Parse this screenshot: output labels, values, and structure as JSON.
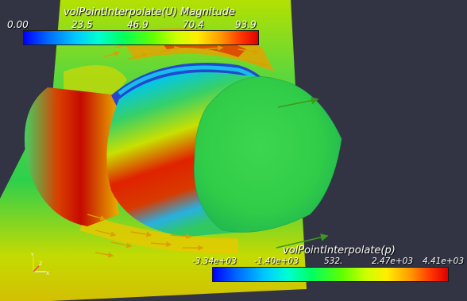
{
  "velocity_colorbar": {
    "title": "volPointInterpolate(U) Magnitude",
    "ticks": [
      "0.00",
      "23.5",
      "46.9",
      "70.4",
      "93.9"
    ]
  },
  "pressure_colorbar": {
    "title": "volPointInterpolate(p)",
    "ticks": [
      "-3.34e+03",
      "-1.40e+03",
      "532.",
      "2.47e+03",
      "4.41e+03"
    ]
  },
  "axes": {
    "labels": [
      "Y",
      "X",
      "Z"
    ]
  },
  "colors": {
    "background": "#323444",
    "text": "#ffffff"
  }
}
